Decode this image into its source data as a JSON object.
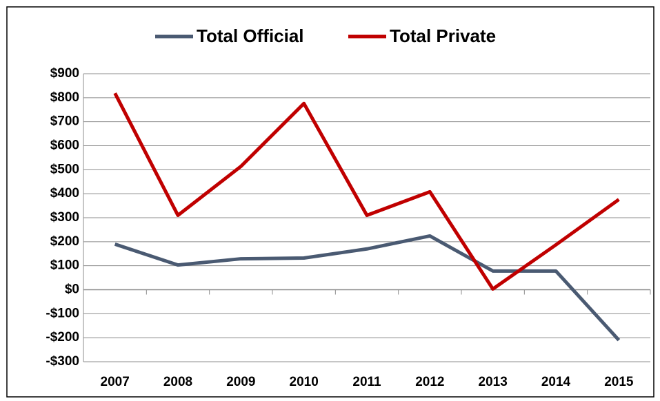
{
  "chart_data": {
    "type": "line",
    "categories": [
      "2007",
      "2008",
      "2009",
      "2010",
      "2011",
      "2012",
      "2013",
      "2014",
      "2015"
    ],
    "series": [
      {
        "name": "Total Official",
        "color": "#4a5a72",
        "values": [
          190,
          103,
          129,
          132,
          170,
          224,
          78,
          78,
          -210
        ]
      },
      {
        "name": "Total Private",
        "color": "#c00000",
        "values": [
          819,
          310,
          514,
          776,
          310,
          408,
          3,
          187,
          376
        ]
      }
    ],
    "ylim": [
      -300,
      900
    ],
    "yticks": [
      {
        "value": -300,
        "label": "-$300"
      },
      {
        "value": -200,
        "label": "-$200"
      },
      {
        "value": -100,
        "label": "-$100"
      },
      {
        "value": 0,
        "label": "$0"
      },
      {
        "value": 100,
        "label": "$100"
      },
      {
        "value": 200,
        "label": "$200"
      },
      {
        "value": 300,
        "label": "$300"
      },
      {
        "value": 400,
        "label": "$400"
      },
      {
        "value": 500,
        "label": "$500"
      },
      {
        "value": 600,
        "label": "$600"
      },
      {
        "value": 700,
        "label": "$700"
      },
      {
        "value": 800,
        "label": "$800"
      },
      {
        "value": 900,
        "label": "$900"
      }
    ],
    "grid": true,
    "legend": "top"
  }
}
